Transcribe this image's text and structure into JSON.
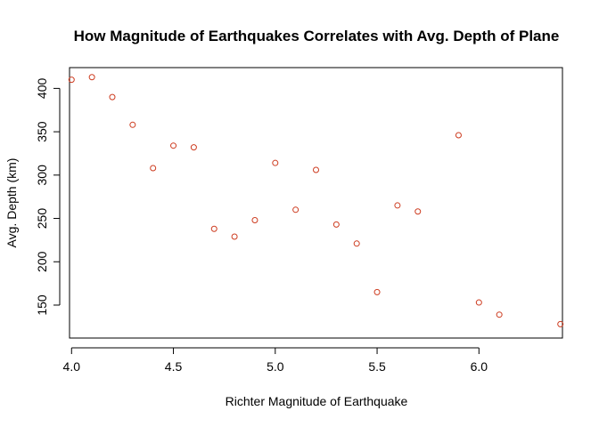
{
  "chart_data": {
    "type": "scatter",
    "title": "How Magnitude of Earthquakes Correlates with Avg. Depth of Plane",
    "xlabel": "Richter Magnitude of Earthquake",
    "ylabel": "Avg. Depth (km)",
    "xlim": [
      3.99,
      6.41
    ],
    "ylim": [
      112,
      424
    ],
    "xticks": [
      "4.0",
      "4.5",
      "5.0",
      "5.5",
      "6.0"
    ],
    "yticks": [
      "150",
      "200",
      "250",
      "300",
      "350",
      "400"
    ],
    "grid": false,
    "legend": "none",
    "marker_color": "#cd3b1f",
    "points": [
      {
        "x": 4.0,
        "y": 410
      },
      {
        "x": 4.1,
        "y": 413
      },
      {
        "x": 4.2,
        "y": 390
      },
      {
        "x": 4.3,
        "y": 358
      },
      {
        "x": 4.4,
        "y": 308
      },
      {
        "x": 4.5,
        "y": 334
      },
      {
        "x": 4.6,
        "y": 332
      },
      {
        "x": 4.7,
        "y": 238
      },
      {
        "x": 4.8,
        "y": 229
      },
      {
        "x": 4.9,
        "y": 248
      },
      {
        "x": 5.0,
        "y": 314
      },
      {
        "x": 5.1,
        "y": 260
      },
      {
        "x": 5.2,
        "y": 306
      },
      {
        "x": 5.3,
        "y": 243
      },
      {
        "x": 5.4,
        "y": 221
      },
      {
        "x": 5.5,
        "y": 165
      },
      {
        "x": 5.6,
        "y": 265
      },
      {
        "x": 5.7,
        "y": 258
      },
      {
        "x": 5.9,
        "y": 346
      },
      {
        "x": 6.0,
        "y": 153
      },
      {
        "x": 6.1,
        "y": 139
      },
      {
        "x": 6.4,
        "y": 128
      }
    ]
  }
}
